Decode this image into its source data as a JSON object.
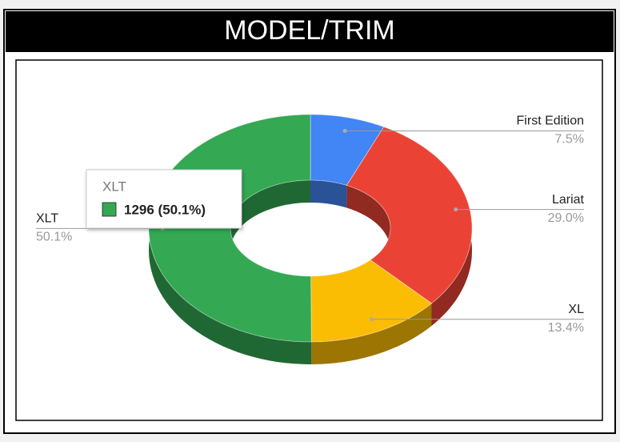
{
  "chart_data": {
    "type": "pie",
    "title": "MODEL/TRIM",
    "categories": [
      "First Edition",
      "Lariat",
      "XL",
      "XLT"
    ],
    "values": [
      7.5,
      29.0,
      13.4,
      50.1
    ],
    "value_labels": [
      "7.5%",
      "29.0%",
      "13.4%",
      "50.1%"
    ],
    "colors": [
      "#4285f4",
      "#ea4335",
      "#fbbc04",
      "#34a853"
    ],
    "donut": true,
    "three_d": true,
    "tooltip": "1296 (50.1%)"
  }
}
